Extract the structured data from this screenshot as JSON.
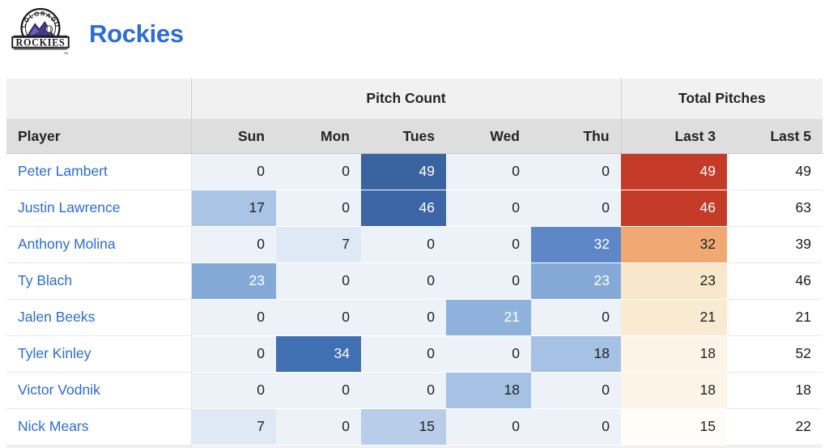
{
  "header": {
    "team_name": "Rockies",
    "logo": {
      "top_text": "COLORADO",
      "bottom_text": "ROCKIES",
      "tm": "TM"
    }
  },
  "colors": {
    "accent_blue": "#2b6cd9",
    "heat_blue_max": "#3a63a1",
    "heat_red_max": "#c43c28",
    "header_group_bg": "#f1f1f1",
    "header_cols_bg": "#dedede"
  },
  "table": {
    "group_headers": {
      "player_spacer": "",
      "pitch_count": "Pitch Count",
      "total_pitches": "Total Pitches"
    },
    "columns": [
      "Player",
      "Sun",
      "Mon",
      "Tues",
      "Wed",
      "Thu",
      "Last 3",
      "Last 5"
    ],
    "rows": [
      {
        "player": "Peter Lambert",
        "days": [
          {
            "value": "0",
            "bg": "#edf2f9",
            "fg": "#222222"
          },
          {
            "value": "0",
            "bg": "#edf2f9",
            "fg": "#222222"
          },
          {
            "value": "49",
            "bg": "#3a63a1",
            "fg": "#ffffff"
          },
          {
            "value": "0",
            "bg": "#edf2f9",
            "fg": "#222222"
          },
          {
            "value": "0",
            "bg": "#edf2f9",
            "fg": "#222222"
          }
        ],
        "last3": {
          "value": "49",
          "bg": "#c43c28",
          "fg": "#ffffff"
        },
        "last5": {
          "value": "49"
        }
      },
      {
        "player": "Justin Lawrence",
        "days": [
          {
            "value": "17",
            "bg": "#aac4e5",
            "fg": "#222222"
          },
          {
            "value": "0",
            "bg": "#edf2f9",
            "fg": "#222222"
          },
          {
            "value": "46",
            "bg": "#3b65a5",
            "fg": "#ffffff"
          },
          {
            "value": "0",
            "bg": "#edf2f9",
            "fg": "#222222"
          },
          {
            "value": "0",
            "bg": "#edf2f9",
            "fg": "#222222"
          }
        ],
        "last3": {
          "value": "46",
          "bg": "#c43c28",
          "fg": "#ffffff"
        },
        "last5": {
          "value": "63"
        }
      },
      {
        "player": "Anthony Molina",
        "days": [
          {
            "value": "0",
            "bg": "#edf2f9",
            "fg": "#222222"
          },
          {
            "value": "7",
            "bg": "#dfe9f5",
            "fg": "#222222"
          },
          {
            "value": "0",
            "bg": "#edf2f9",
            "fg": "#222222"
          },
          {
            "value": "0",
            "bg": "#edf2f9",
            "fg": "#222222"
          },
          {
            "value": "32",
            "bg": "#5d87c6",
            "fg": "#ffffff"
          }
        ],
        "last3": {
          "value": "32",
          "bg": "#f0a973",
          "fg": "#222222"
        },
        "last5": {
          "value": "39"
        }
      },
      {
        "player": "Ty Blach",
        "days": [
          {
            "value": "23",
            "bg": "#85a9d7",
            "fg": "#ffffff"
          },
          {
            "value": "0",
            "bg": "#edf2f9",
            "fg": "#222222"
          },
          {
            "value": "0",
            "bg": "#edf2f9",
            "fg": "#222222"
          },
          {
            "value": "0",
            "bg": "#edf2f9",
            "fg": "#222222"
          },
          {
            "value": "23",
            "bg": "#85a9d7",
            "fg": "#ffffff"
          }
        ],
        "last3": {
          "value": "23",
          "bg": "#f8e8cb",
          "fg": "#222222"
        },
        "last5": {
          "value": "46"
        }
      },
      {
        "player": "Jalen Beeks",
        "days": [
          {
            "value": "0",
            "bg": "#edf2f9",
            "fg": "#222222"
          },
          {
            "value": "0",
            "bg": "#edf2f9",
            "fg": "#222222"
          },
          {
            "value": "0",
            "bg": "#edf2f9",
            "fg": "#222222"
          },
          {
            "value": "21",
            "bg": "#8fb2dc",
            "fg": "#ffffff"
          },
          {
            "value": "0",
            "bg": "#edf2f9",
            "fg": "#222222"
          }
        ],
        "last3": {
          "value": "21",
          "bg": "#f9ebd1",
          "fg": "#222222"
        },
        "last5": {
          "value": "21"
        }
      },
      {
        "player": "Tyler Kinley",
        "days": [
          {
            "value": "0",
            "bg": "#edf2f9",
            "fg": "#222222"
          },
          {
            "value": "34",
            "bg": "#4170b2",
            "fg": "#ffffff"
          },
          {
            "value": "0",
            "bg": "#edf2f9",
            "fg": "#222222"
          },
          {
            "value": "0",
            "bg": "#edf2f9",
            "fg": "#222222"
          },
          {
            "value": "18",
            "bg": "#a5c1e3",
            "fg": "#222222"
          }
        ],
        "last3": {
          "value": "18",
          "bg": "#fdf4e8",
          "fg": "#222222"
        },
        "last5": {
          "value": "52"
        }
      },
      {
        "player": "Victor Vodnik",
        "days": [
          {
            "value": "0",
            "bg": "#edf2f9",
            "fg": "#222222"
          },
          {
            "value": "0",
            "bg": "#edf2f9",
            "fg": "#222222"
          },
          {
            "value": "0",
            "bg": "#edf2f9",
            "fg": "#222222"
          },
          {
            "value": "18",
            "bg": "#a5c1e3",
            "fg": "#222222"
          },
          {
            "value": "0",
            "bg": "#edf2f9",
            "fg": "#222222"
          }
        ],
        "last3": {
          "value": "18",
          "bg": "#fdf4e8",
          "fg": "#222222"
        },
        "last5": {
          "value": "18"
        }
      },
      {
        "player": "Nick Mears",
        "days": [
          {
            "value": "7",
            "bg": "#dfe9f5",
            "fg": "#222222"
          },
          {
            "value": "0",
            "bg": "#edf2f9",
            "fg": "#222222"
          },
          {
            "value": "15",
            "bg": "#b7cdea",
            "fg": "#222222"
          },
          {
            "value": "0",
            "bg": "#edf2f9",
            "fg": "#222222"
          },
          {
            "value": "0",
            "bg": "#edf2f9",
            "fg": "#222222"
          }
        ],
        "last3": {
          "value": "15",
          "bg": "#fffdf8",
          "fg": "#222222"
        },
        "last5": {
          "value": "22"
        }
      }
    ]
  }
}
